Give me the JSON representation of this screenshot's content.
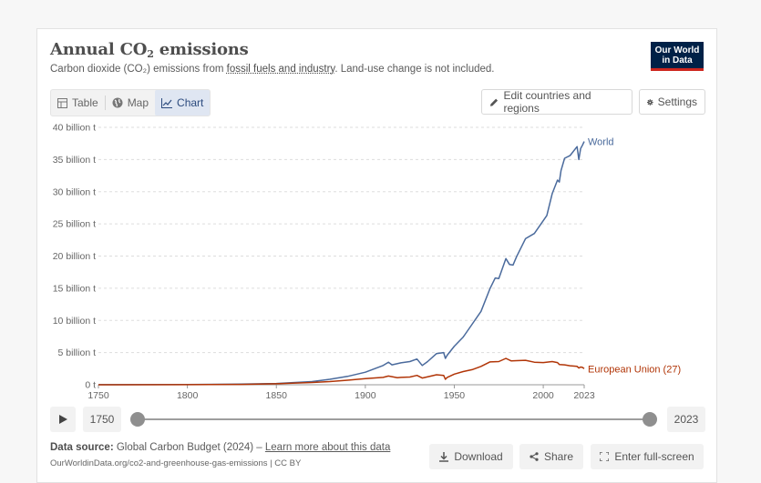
{
  "header": {
    "title_main": "Annual CO",
    "title_sub": "2",
    "title_end": " emissions",
    "subtitle_a": "Carbon dioxide (CO₂) emissions from ",
    "subtitle_link": "fossil fuels and industry",
    "subtitle_b": ". Land-use change is not included.",
    "logo_line1": "Our World",
    "logo_line2": "in Data"
  },
  "tabs": [
    {
      "label": "Table",
      "icon": "table-icon"
    },
    {
      "label": "Map",
      "icon": "globe-icon"
    },
    {
      "label": "Chart",
      "icon": "line-chart-icon"
    }
  ],
  "toolbar": {
    "edit_label": "Edit countries and regions",
    "settings_label": "Settings"
  },
  "timeline": {
    "start_year": "1750",
    "end_year": "2023"
  },
  "footer": {
    "source_label": "Data source:",
    "source_text": " Global Carbon Budget (2024) – ",
    "learn_more": "Learn more about this data",
    "url": "OurWorldinData.org/co2-and-greenhouse-gas-emissions | CC BY",
    "download_label": "Download",
    "share_label": "Share",
    "fullscreen_label": "Enter full-screen"
  },
  "colors": {
    "world": "#4a6a9c",
    "eu": "#b13507",
    "grid": "#dddddd",
    "axis": "#666666"
  },
  "chart_data": {
    "type": "line",
    "title": "Annual CO₂ emissions",
    "xlabel": "",
    "ylabel": "",
    "xlim": [
      1750,
      2023
    ],
    "ylim": [
      0,
      40
    ],
    "x_ticks": [
      1750,
      1800,
      1850,
      1900,
      1950,
      2000,
      2023
    ],
    "y_ticks": [
      0,
      5,
      10,
      15,
      20,
      25,
      30,
      35,
      40
    ],
    "y_tick_labels": [
      "0 t",
      "5 billion t",
      "10 billion t",
      "15 billion t",
      "20 billion t",
      "25 billion t",
      "30 billion t",
      "35 billion t",
      "40 billion t"
    ],
    "series": [
      {
        "name": "World",
        "x": [
          1750,
          1800,
          1830,
          1850,
          1870,
          1880,
          1890,
          1900,
          1910,
          1913,
          1915,
          1920,
          1925,
          1929,
          1932,
          1935,
          1940,
          1944,
          1945,
          1946,
          1950,
          1955,
          1960,
          1965,
          1970,
          1973,
          1975,
          1979,
          1981,
          1983,
          1985,
          1990,
          1995,
          2000,
          2002,
          2005,
          2008,
          2009,
          2010,
          2012,
          2015,
          2019,
          2020,
          2021,
          2022,
          2023
        ],
        "values": [
          0.01,
          0.03,
          0.1,
          0.2,
          0.5,
          0.85,
          1.3,
          1.95,
          3.0,
          3.5,
          3.1,
          3.4,
          3.6,
          4.0,
          3.0,
          3.6,
          4.85,
          5.0,
          4.1,
          4.6,
          6.0,
          7.4,
          9.4,
          11.4,
          14.9,
          16.6,
          16.5,
          19.6,
          18.7,
          18.6,
          19.9,
          22.7,
          23.5,
          25.5,
          26.3,
          29.7,
          31.8,
          31.5,
          33.3,
          35.2,
          35.6,
          37.0,
          35.0,
          36.7,
          37.2,
          37.8
        ]
      },
      {
        "name": "European Union (27)",
        "x": [
          1750,
          1800,
          1830,
          1850,
          1870,
          1880,
          1890,
          1900,
          1910,
          1913,
          1918,
          1920,
          1925,
          1929,
          1932,
          1937,
          1940,
          1944,
          1945,
          1946,
          1950,
          1955,
          1960,
          1965,
          1970,
          1975,
          1979,
          1982,
          1985,
          1990,
          1995,
          2000,
          2005,
          2008,
          2009,
          2012,
          2015,
          2019,
          2020,
          2021,
          2022,
          2023
        ],
        "values": [
          0.0,
          0.02,
          0.06,
          0.15,
          0.35,
          0.5,
          0.7,
          0.95,
          1.15,
          1.35,
          1.1,
          1.15,
          1.2,
          1.45,
          1.05,
          1.35,
          1.55,
          1.45,
          0.85,
          1.15,
          1.65,
          2.05,
          2.35,
          2.85,
          3.55,
          3.6,
          4.1,
          3.7,
          3.75,
          3.8,
          3.5,
          3.45,
          3.6,
          3.45,
          3.15,
          3.1,
          2.95,
          2.85,
          2.6,
          2.75,
          2.7,
          2.5
        ]
      }
    ]
  }
}
